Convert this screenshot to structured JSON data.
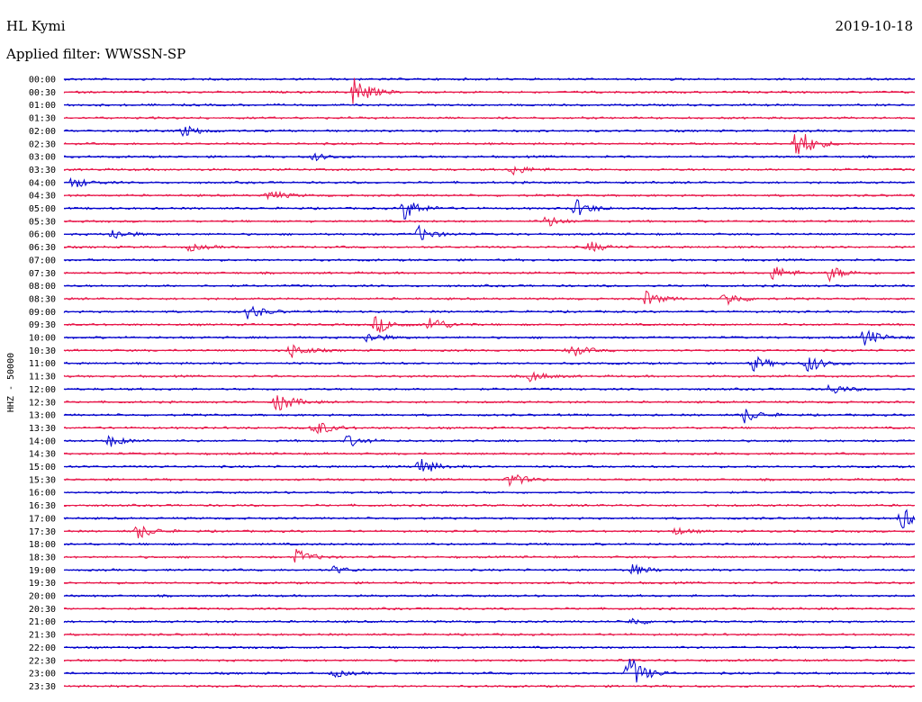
{
  "header": {
    "station": "HL Kymi",
    "date": "2019-10-18",
    "filter_label": "Applied filter: WWSSN-SP"
  },
  "chart_data": {
    "type": "line",
    "ylabel": "HHZ - 50000",
    "row_colors": [
      "#0000cc",
      "#e8174a"
    ],
    "times": [
      "00:00",
      "00:30",
      "01:00",
      "01:30",
      "02:00",
      "02:30",
      "03:00",
      "03:30",
      "04:00",
      "04:30",
      "05:00",
      "05:30",
      "06:00",
      "06:30",
      "07:00",
      "07:30",
      "08:00",
      "08:30",
      "09:00",
      "09:30",
      "10:00",
      "10:30",
      "11:00",
      "11:30",
      "12:00",
      "12:30",
      "13:00",
      "13:30",
      "14:00",
      "14:30",
      "15:00",
      "15:30",
      "16:00",
      "16:30",
      "17:00",
      "17:30",
      "18:00",
      "18:30",
      "19:00",
      "19:30",
      "20:00",
      "20:30",
      "21:00",
      "21:30",
      "22:00",
      "22:30",
      "23:00",
      "23:30"
    ],
    "events": [
      {
        "row": "00:30",
        "minute": 10.2,
        "amplitude": 0.9
      },
      {
        "row": "02:00",
        "minute": 4.2,
        "amplitude": 0.3
      },
      {
        "row": "02:30",
        "minute": 25.8,
        "amplitude": 1.0
      },
      {
        "row": "03:00",
        "minute": 8.8,
        "amplitude": 0.2
      },
      {
        "row": "03:30",
        "minute": 15.8,
        "amplitude": 0.3
      },
      {
        "row": "04:00",
        "minute": 0.3,
        "amplitude": 0.3
      },
      {
        "row": "04:30",
        "minute": 7.2,
        "amplitude": 0.3
      },
      {
        "row": "05:00",
        "minute": 12.0,
        "amplitude": 0.6
      },
      {
        "row": "05:00",
        "minute": 18.0,
        "amplitude": 0.5
      },
      {
        "row": "05:30",
        "minute": 17.0,
        "amplitude": 0.3
      },
      {
        "row": "06:00",
        "minute": 1.7,
        "amplitude": 0.3
      },
      {
        "row": "06:00",
        "minute": 12.5,
        "amplitude": 0.4
      },
      {
        "row": "06:30",
        "minute": 4.4,
        "amplitude": 0.2
      },
      {
        "row": "06:30",
        "minute": 18.5,
        "amplitude": 0.3
      },
      {
        "row": "07:30",
        "minute": 25.0,
        "amplitude": 0.4
      },
      {
        "row": "07:30",
        "minute": 27.0,
        "amplitude": 0.4
      },
      {
        "row": "08:30",
        "minute": 20.5,
        "amplitude": 0.4
      },
      {
        "row": "08:30",
        "minute": 23.3,
        "amplitude": 0.4
      },
      {
        "row": "09:00",
        "minute": 6.5,
        "amplitude": 0.4
      },
      {
        "row": "09:30",
        "minute": 11.0,
        "amplitude": 0.5
      },
      {
        "row": "09:30",
        "minute": 12.9,
        "amplitude": 0.5
      },
      {
        "row": "10:00",
        "minute": 10.7,
        "amplitude": 0.3
      },
      {
        "row": "10:00",
        "minute": 28.2,
        "amplitude": 0.5
      },
      {
        "row": "10:30",
        "minute": 8.0,
        "amplitude": 0.4
      },
      {
        "row": "10:30",
        "minute": 17.8,
        "amplitude": 0.4
      },
      {
        "row": "11:00",
        "minute": 24.3,
        "amplitude": 0.4
      },
      {
        "row": "11:00",
        "minute": 26.2,
        "amplitude": 0.5
      },
      {
        "row": "11:30",
        "minute": 16.4,
        "amplitude": 0.3
      },
      {
        "row": "12:00",
        "minute": 27.0,
        "amplitude": 0.3
      },
      {
        "row": "12:30",
        "minute": 7.5,
        "amplitude": 0.6
      },
      {
        "row": "13:00",
        "minute": 24.0,
        "amplitude": 0.4
      },
      {
        "row": "13:30",
        "minute": 8.8,
        "amplitude": 0.5
      },
      {
        "row": "14:00",
        "minute": 1.6,
        "amplitude": 0.3
      },
      {
        "row": "14:00",
        "minute": 10.0,
        "amplitude": 0.3
      },
      {
        "row": "15:00",
        "minute": 12.5,
        "amplitude": 0.5
      },
      {
        "row": "15:30",
        "minute": 15.7,
        "amplitude": 0.4
      },
      {
        "row": "17:00",
        "minute": 29.5,
        "amplitude": 0.6
      },
      {
        "row": "17:30",
        "minute": 2.6,
        "amplitude": 0.4
      },
      {
        "row": "17:30",
        "minute": 21.5,
        "amplitude": 0.2
      },
      {
        "row": "18:30",
        "minute": 8.2,
        "amplitude": 0.4
      },
      {
        "row": "19:00",
        "minute": 9.5,
        "amplitude": 0.2
      },
      {
        "row": "19:00",
        "minute": 20.0,
        "amplitude": 0.3
      },
      {
        "row": "21:00",
        "minute": 20.0,
        "amplitude": 0.2
      },
      {
        "row": "23:00",
        "minute": 9.5,
        "amplitude": 0.2
      },
      {
        "row": "23:00",
        "minute": 19.9,
        "amplitude": 1.0
      }
    ]
  }
}
